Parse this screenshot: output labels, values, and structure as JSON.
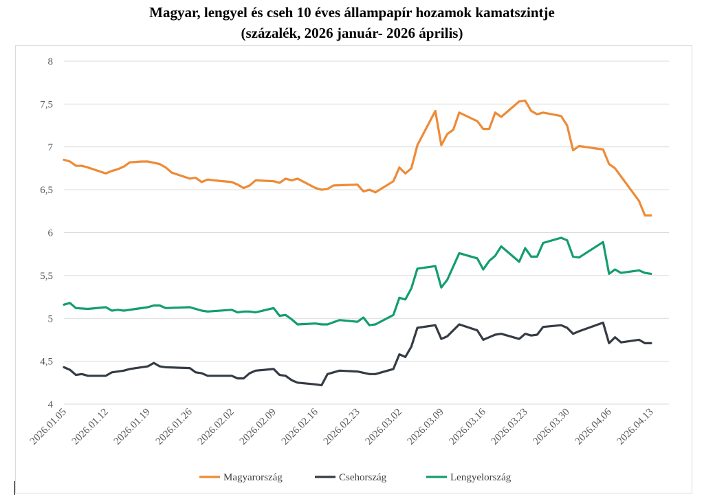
{
  "colors": {
    "hu": "#ED8B36",
    "cz": "#353B45",
    "pl": "#139E6C",
    "grid": "#D9D9D9",
    "text": "#595959"
  },
  "chart_data": {
    "type": "line",
    "title": "Magyar, lengyel és cseh 10 éves állampapír hozamok kamatszintje",
    "subtitle": "(százalék, 2026 január- 2026 április)",
    "xlabel": "",
    "ylabel": "",
    "ylim": [
      4,
      8
    ],
    "yticks": [
      "4",
      "4,5",
      "5",
      "5,5",
      "6",
      "6,5",
      "7",
      "7,5",
      "8"
    ],
    "x_range": [
      0,
      101
    ],
    "x_ticks": [
      {
        "label": "2026.01.05",
        "x": 0
      },
      {
        "label": "2026.01.12",
        "x": 7
      },
      {
        "label": "2026.01.19",
        "x": 14
      },
      {
        "label": "2026.01.26",
        "x": 21
      },
      {
        "label": "2026.02.02",
        "x": 28
      },
      {
        "label": "2026.02.09",
        "x": 35
      },
      {
        "label": "2026.02.16",
        "x": 42
      },
      {
        "label": "2026.02.23",
        "x": 49
      },
      {
        "label": "2026.03.02",
        "x": 56
      },
      {
        "label": "2026.03.09",
        "x": 63
      },
      {
        "label": "2026.03.16",
        "x": 70
      },
      {
        "label": "2026.03.23",
        "x": 77
      },
      {
        "label": "2026.03.30",
        "x": 84
      },
      {
        "label": "2026.04.06",
        "x": 91
      },
      {
        "label": "2026.04.13",
        "x": 98
      }
    ],
    "grid": true,
    "legend": "bottom",
    "series": [
      {
        "name": "Magyarország",
        "color_key": "hu",
        "points": [
          [
            0,
            6.85
          ],
          [
            1,
            6.83
          ],
          [
            2,
            6.78
          ],
          [
            3,
            6.78
          ],
          [
            4,
            6.76
          ],
          [
            7,
            6.69
          ],
          [
            8,
            6.72
          ],
          [
            9,
            6.74
          ],
          [
            10,
            6.77
          ],
          [
            11,
            6.82
          ],
          [
            13,
            6.83
          ],
          [
            14,
            6.83
          ],
          [
            16,
            6.8
          ],
          [
            17,
            6.76
          ],
          [
            18,
            6.7
          ],
          [
            21,
            6.63
          ],
          [
            22,
            6.64
          ],
          [
            23,
            6.59
          ],
          [
            24,
            6.62
          ],
          [
            25,
            6.61
          ],
          [
            28,
            6.59
          ],
          [
            29,
            6.56
          ],
          [
            30,
            6.52
          ],
          [
            31,
            6.55
          ],
          [
            32,
            6.61
          ],
          [
            35,
            6.6
          ],
          [
            36,
            6.58
          ],
          [
            37,
            6.63
          ],
          [
            38,
            6.61
          ],
          [
            39,
            6.63
          ],
          [
            42,
            6.52
          ],
          [
            43,
            6.5
          ],
          [
            44,
            6.51
          ],
          [
            45,
            6.55
          ],
          [
            49,
            6.56
          ],
          [
            50,
            6.48
          ],
          [
            51,
            6.5
          ],
          [
            52,
            6.47
          ],
          [
            55,
            6.6
          ],
          [
            56,
            6.76
          ],
          [
            57,
            6.69
          ],
          [
            58,
            6.75
          ],
          [
            59,
            7.02
          ],
          [
            62,
            7.42
          ],
          [
            63,
            7.02
          ],
          [
            64,
            7.15
          ],
          [
            65,
            7.2
          ],
          [
            66,
            7.4
          ],
          [
            69,
            7.3
          ],
          [
            70,
            7.21
          ],
          [
            71,
            7.21
          ],
          [
            72,
            7.4
          ],
          [
            73,
            7.35
          ],
          [
            76,
            7.53
          ],
          [
            77,
            7.54
          ],
          [
            78,
            7.42
          ],
          [
            79,
            7.38
          ],
          [
            80,
            7.4
          ],
          [
            83,
            7.36
          ],
          [
            84,
            7.25
          ],
          [
            85,
            6.96
          ],
          [
            86,
            7.01
          ],
          [
            90,
            6.97
          ],
          [
            91,
            6.8
          ],
          [
            92,
            6.75
          ],
          [
            96,
            6.37
          ],
          [
            97,
            6.2
          ],
          [
            98,
            6.2
          ]
        ]
      },
      {
        "name": "Csehország",
        "color_key": "cz",
        "points": [
          [
            0,
            4.43
          ],
          [
            1,
            4.4
          ],
          [
            2,
            4.34
          ],
          [
            3,
            4.35
          ],
          [
            4,
            4.33
          ],
          [
            7,
            4.33
          ],
          [
            8,
            4.37
          ],
          [
            9,
            4.38
          ],
          [
            10,
            4.39
          ],
          [
            11,
            4.41
          ],
          [
            14,
            4.44
          ],
          [
            15,
            4.48
          ],
          [
            16,
            4.44
          ],
          [
            17,
            4.43
          ],
          [
            21,
            4.42
          ],
          [
            22,
            4.37
          ],
          [
            23,
            4.36
          ],
          [
            24,
            4.33
          ],
          [
            28,
            4.33
          ],
          [
            29,
            4.3
          ],
          [
            30,
            4.3
          ],
          [
            31,
            4.36
          ],
          [
            32,
            4.39
          ],
          [
            35,
            4.41
          ],
          [
            36,
            4.34
          ],
          [
            37,
            4.33
          ],
          [
            38,
            4.28
          ],
          [
            39,
            4.25
          ],
          [
            42,
            4.23
          ],
          [
            43,
            4.22
          ],
          [
            44,
            4.35
          ],
          [
            45,
            4.37
          ],
          [
            46,
            4.39
          ],
          [
            49,
            4.38
          ],
          [
            51,
            4.35
          ],
          [
            52,
            4.35
          ],
          [
            55,
            4.41
          ],
          [
            56,
            4.58
          ],
          [
            57,
            4.55
          ],
          [
            58,
            4.67
          ],
          [
            59,
            4.89
          ],
          [
            62,
            4.92
          ],
          [
            63,
            4.76
          ],
          [
            64,
            4.79
          ],
          [
            66,
            4.93
          ],
          [
            69,
            4.86
          ],
          [
            70,
            4.75
          ],
          [
            71,
            4.78
          ],
          [
            72,
            4.81
          ],
          [
            73,
            4.82
          ],
          [
            76,
            4.76
          ],
          [
            77,
            4.82
          ],
          [
            78,
            4.8
          ],
          [
            79,
            4.81
          ],
          [
            80,
            4.9
          ],
          [
            83,
            4.92
          ],
          [
            84,
            4.89
          ],
          [
            85,
            4.82
          ],
          [
            86,
            4.85
          ],
          [
            90,
            4.95
          ],
          [
            91,
            4.71
          ],
          [
            92,
            4.78
          ],
          [
            93,
            4.72
          ],
          [
            96,
            4.75
          ],
          [
            97,
            4.71
          ],
          [
            98,
            4.71
          ]
        ]
      },
      {
        "name": "Lengyelország",
        "color_key": "pl",
        "points": [
          [
            0,
            5.16
          ],
          [
            1,
            5.18
          ],
          [
            2,
            5.12
          ],
          [
            4,
            5.11
          ],
          [
            7,
            5.13
          ],
          [
            8,
            5.09
          ],
          [
            9,
            5.1
          ],
          [
            10,
            5.09
          ],
          [
            14,
            5.13
          ],
          [
            15,
            5.15
          ],
          [
            16,
            5.15
          ],
          [
            17,
            5.12
          ],
          [
            21,
            5.13
          ],
          [
            22,
            5.11
          ],
          [
            23,
            5.09
          ],
          [
            24,
            5.08
          ],
          [
            28,
            5.1
          ],
          [
            29,
            5.07
          ],
          [
            30,
            5.08
          ],
          [
            31,
            5.08
          ],
          [
            32,
            5.07
          ],
          [
            35,
            5.12
          ],
          [
            36,
            5.03
          ],
          [
            37,
            5.04
          ],
          [
            38,
            4.99
          ],
          [
            39,
            4.93
          ],
          [
            42,
            4.94
          ],
          [
            43,
            4.93
          ],
          [
            44,
            4.93
          ],
          [
            46,
            4.98
          ],
          [
            49,
            4.96
          ],
          [
            50,
            5.01
          ],
          [
            51,
            4.92
          ],
          [
            52,
            4.93
          ],
          [
            55,
            5.04
          ],
          [
            56,
            5.24
          ],
          [
            57,
            5.22
          ],
          [
            58,
            5.35
          ],
          [
            59,
            5.58
          ],
          [
            62,
            5.61
          ],
          [
            63,
            5.36
          ],
          [
            64,
            5.45
          ],
          [
            66,
            5.76
          ],
          [
            69,
            5.7
          ],
          [
            70,
            5.57
          ],
          [
            71,
            5.67
          ],
          [
            72,
            5.73
          ],
          [
            73,
            5.84
          ],
          [
            76,
            5.66
          ],
          [
            77,
            5.82
          ],
          [
            78,
            5.72
          ],
          [
            79,
            5.72
          ],
          [
            80,
            5.88
          ],
          [
            83,
            5.94
          ],
          [
            84,
            5.91
          ],
          [
            85,
            5.72
          ],
          [
            86,
            5.71
          ],
          [
            90,
            5.89
          ],
          [
            91,
            5.52
          ],
          [
            92,
            5.57
          ],
          [
            93,
            5.53
          ],
          [
            96,
            5.56
          ],
          [
            97,
            5.53
          ],
          [
            98,
            5.52
          ]
        ]
      }
    ]
  }
}
